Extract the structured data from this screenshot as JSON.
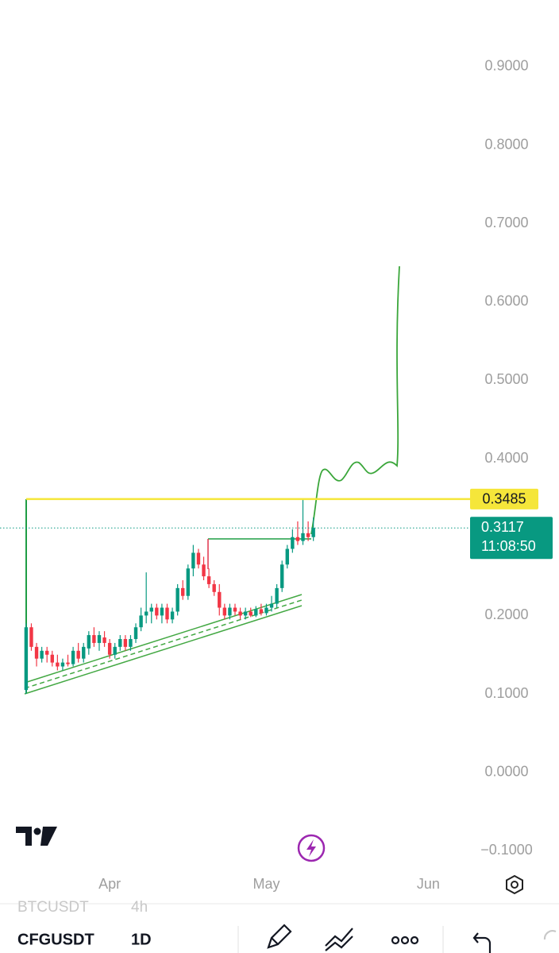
{
  "chart_data": {
    "type": "candlestick",
    "x": [
      0,
      1,
      2,
      3,
      4,
      5,
      6,
      7,
      8,
      9,
      10,
      11,
      12,
      13,
      14,
      15,
      16,
      17,
      18,
      19,
      20,
      21,
      22,
      23,
      24,
      25,
      26,
      27,
      28,
      29,
      30,
      31,
      32,
      33,
      34,
      35,
      36,
      37,
      38,
      39,
      40,
      41,
      42,
      43,
      44,
      45,
      46,
      47,
      48,
      49,
      50,
      51,
      52,
      53,
      54,
      55
    ],
    "open": [
      0.105,
      0.185,
      0.16,
      0.145,
      0.155,
      0.15,
      0.14,
      0.135,
      0.14,
      0.138,
      0.155,
      0.145,
      0.158,
      0.175,
      0.165,
      0.172,
      0.165,
      0.15,
      0.16,
      0.17,
      0.16,
      0.17,
      0.185,
      0.2,
      0.205,
      0.21,
      0.2,
      0.21,
      0.195,
      0.205,
      0.235,
      0.225,
      0.26,
      0.28,
      0.265,
      0.25,
      0.24,
      0.23,
      0.21,
      0.2,
      0.21,
      0.205,
      0.2,
      0.205,
      0.2,
      0.208,
      0.203,
      0.21,
      0.215,
      0.235,
      0.265,
      0.285,
      0.3,
      0.295,
      0.305,
      0.3
    ],
    "high": [
      0.19,
      0.19,
      0.165,
      0.16,
      0.16,
      0.155,
      0.15,
      0.145,
      0.15,
      0.16,
      0.165,
      0.165,
      0.18,
      0.185,
      0.18,
      0.18,
      0.17,
      0.165,
      0.175,
      0.175,
      0.175,
      0.19,
      0.21,
      0.255,
      0.215,
      0.215,
      0.215,
      0.215,
      0.21,
      0.24,
      0.245,
      0.265,
      0.29,
      0.285,
      0.275,
      0.26,
      0.245,
      0.24,
      0.215,
      0.215,
      0.215,
      0.21,
      0.21,
      0.21,
      0.212,
      0.215,
      0.215,
      0.225,
      0.24,
      0.27,
      0.29,
      0.31,
      0.32,
      0.3485,
      0.32,
      0.325
    ],
    "low": [
      0.1,
      0.155,
      0.135,
      0.14,
      0.14,
      0.135,
      0.13,
      0.13,
      0.135,
      0.135,
      0.14,
      0.14,
      0.15,
      0.16,
      0.155,
      0.16,
      0.145,
      0.145,
      0.155,
      0.155,
      0.155,
      0.165,
      0.18,
      0.19,
      0.19,
      0.195,
      0.19,
      0.19,
      0.19,
      0.2,
      0.22,
      0.22,
      0.25,
      0.26,
      0.245,
      0.235,
      0.225,
      0.2,
      0.195,
      0.195,
      0.2,
      0.195,
      0.195,
      0.198,
      0.198,
      0.2,
      0.2,
      0.205,
      0.21,
      0.23,
      0.26,
      0.28,
      0.29,
      0.29,
      0.295,
      0.295
    ],
    "close": [
      0.185,
      0.16,
      0.145,
      0.155,
      0.15,
      0.14,
      0.135,
      0.14,
      0.138,
      0.155,
      0.145,
      0.16,
      0.175,
      0.165,
      0.175,
      0.165,
      0.15,
      0.16,
      0.17,
      0.16,
      0.17,
      0.185,
      0.2,
      0.205,
      0.21,
      0.2,
      0.21,
      0.195,
      0.205,
      0.235,
      0.225,
      0.26,
      0.28,
      0.265,
      0.25,
      0.24,
      0.23,
      0.21,
      0.2,
      0.21,
      0.205,
      0.2,
      0.205,
      0.2,
      0.208,
      0.203,
      0.21,
      0.215,
      0.235,
      0.265,
      0.285,
      0.3,
      0.295,
      0.305,
      0.3,
      0.3117
    ],
    "up_color": "#089981",
    "down_color": "#f23645",
    "xlim": [
      -5,
      85
    ],
    "xticks": [
      {
        "value": 16,
        "label": "Apr"
      },
      {
        "value": 46,
        "label": "May"
      },
      {
        "value": 77,
        "label": "Jun"
      }
    ],
    "ylim": [
      -0.125,
      0.985
    ],
    "yticks": [
      {
        "value": 0.9,
        "label": "0.9000"
      },
      {
        "value": 0.8,
        "label": "0.8000"
      },
      {
        "value": 0.7,
        "label": "0.7000"
      },
      {
        "value": 0.6,
        "label": "0.6000"
      },
      {
        "value": 0.5,
        "label": "0.5000"
      },
      {
        "value": 0.4,
        "label": "0.4000"
      },
      {
        "value": 0.2,
        "label": "0.2000"
      },
      {
        "value": 0.1,
        "label": "0.1000"
      },
      {
        "value": 0,
        "label": "0.0000"
      },
      {
        "value": -0.1,
        "label": "−0.1000"
      }
    ],
    "price_line": 0.3485,
    "price_line_color": "#f5e63a",
    "countdown": "11:08:50"
  },
  "toolbar": {
    "watchlist_symbol": "BTCUSDT",
    "watchlist_interval": "4h",
    "symbol": "CFGUSDT",
    "interval": "1D"
  }
}
